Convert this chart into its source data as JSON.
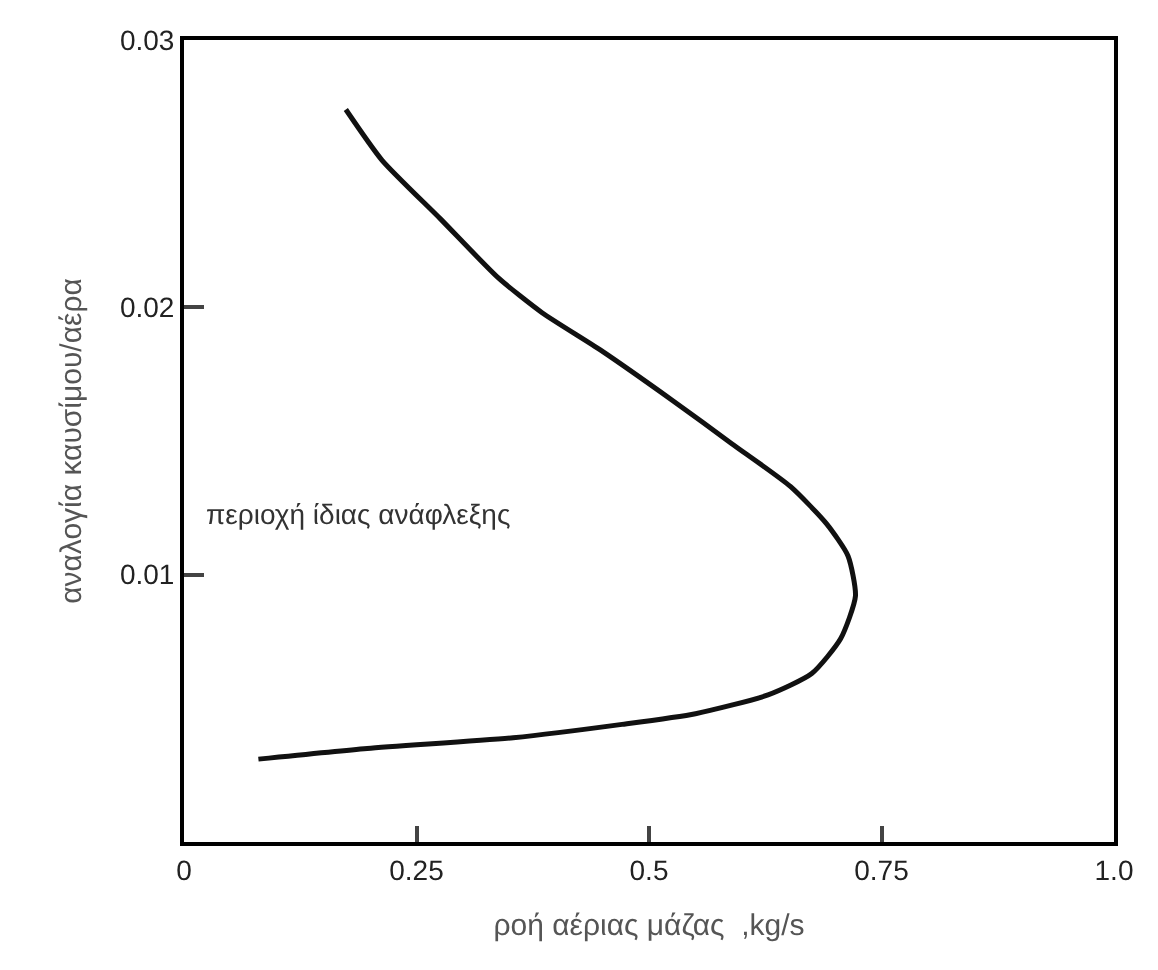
{
  "chart_data": {
    "type": "line",
    "xlabel": "ροή αέριας μάζας  ,kg/s",
    "ylabel": "αναλογία καυσίμου/αέρα",
    "annotations": [
      "περιοχή ίδιας ανάφλεξης"
    ],
    "series": [
      {
        "color": "#111111",
        "x": [
          0.08,
          0.197,
          0.354,
          0.471,
          0.55,
          0.628,
          0.675,
          0.706,
          0.722,
          0.714,
          0.691,
          0.652,
          0.589,
          0.526,
          0.448,
          0.385,
          0.338,
          0.276,
          0.213,
          0.174
        ],
        "values": [
          0.0031,
          0.0035,
          0.0039,
          0.0044,
          0.0048,
          0.0055,
          0.0063,
          0.0076,
          0.0092,
          0.0107,
          0.0119,
          0.0133,
          0.0149,
          0.0165,
          0.0184,
          0.0198,
          0.0211,
          0.0233,
          0.0255,
          0.0274
        ]
      }
    ],
    "xlim": [
      0,
      1
    ],
    "ylim": [
      0,
      0.03
    ],
    "xticks": [
      0,
      0.25,
      0.5,
      0.75,
      {
        "value": 1,
        "label": "1.0"
      }
    ],
    "yticks": [
      0.01,
      0.02,
      0.03
    ],
    "marker": "none",
    "line_style": "solid"
  }
}
